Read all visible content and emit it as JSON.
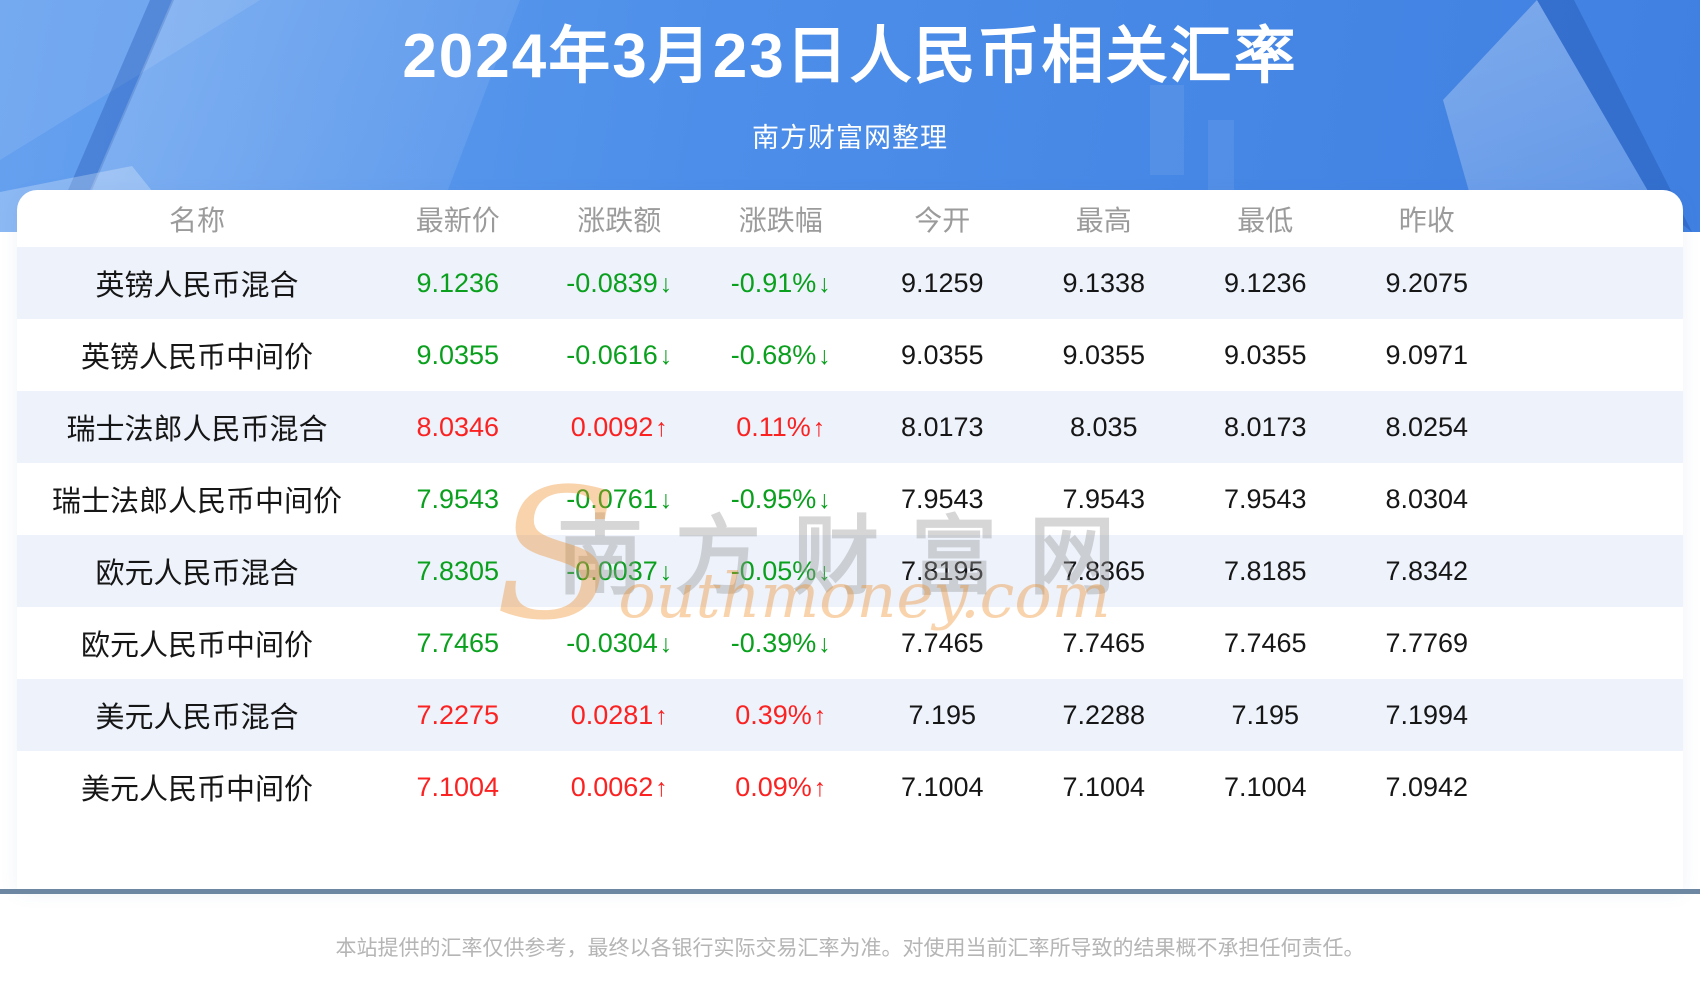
{
  "header": {
    "title": "2024年3月23日人民币相关汇率",
    "subtitle": "南方财富网整理"
  },
  "table": {
    "columns": [
      "名称",
      "最新价",
      "涨跌额",
      "涨跌幅",
      "今开",
      "最高",
      "最低",
      "昨收"
    ],
    "row_fields": [
      "name",
      "latest",
      "change",
      "change_pct",
      "open",
      "high",
      "low",
      "prev_close"
    ],
    "rows": [
      {
        "name": "英镑人民币混合",
        "latest": "9.1236",
        "change": "-0.0839",
        "change_pct": "-0.91%",
        "open": "9.1259",
        "high": "9.1338",
        "low": "9.1236",
        "prev_close": "9.2075",
        "direction": "down"
      },
      {
        "name": "英镑人民币中间价",
        "latest": "9.0355",
        "change": "-0.0616",
        "change_pct": "-0.68%",
        "open": "9.0355",
        "high": "9.0355",
        "low": "9.0355",
        "prev_close": "9.0971",
        "direction": "down"
      },
      {
        "name": "瑞士法郎人民币混合",
        "latest": "8.0346",
        "change": "0.0092",
        "change_pct": "0.11%",
        "open": "8.0173",
        "high": "8.035",
        "low": "8.0173",
        "prev_close": "8.0254",
        "direction": "up"
      },
      {
        "name": "瑞士法郎人民币中间价",
        "latest": "7.9543",
        "change": "-0.0761",
        "change_pct": "-0.95%",
        "open": "7.9543",
        "high": "7.9543",
        "low": "7.9543",
        "prev_close": "8.0304",
        "direction": "down"
      },
      {
        "name": "欧元人民币混合",
        "latest": "7.8305",
        "change": "-0.0037",
        "change_pct": "-0.05%",
        "open": "7.8195",
        "high": "7.8365",
        "low": "7.8185",
        "prev_close": "7.8342",
        "direction": "down"
      },
      {
        "name": "欧元人民币中间价",
        "latest": "7.7465",
        "change": "-0.0304",
        "change_pct": "-0.39%",
        "open": "7.7465",
        "high": "7.7465",
        "low": "7.7465",
        "prev_close": "7.7769",
        "direction": "down"
      },
      {
        "name": "美元人民币混合",
        "latest": "7.2275",
        "change": "0.0281",
        "change_pct": "0.39%",
        "open": "7.195",
        "high": "7.2288",
        "low": "7.195",
        "prev_close": "7.1994",
        "direction": "up"
      },
      {
        "name": "美元人民币中间价",
        "latest": "7.1004",
        "change": "0.0062",
        "change_pct": "0.09%",
        "open": "7.1004",
        "high": "7.1004",
        "low": "7.1004",
        "prev_close": "7.0942",
        "direction": "up"
      }
    ]
  },
  "icons": {
    "up_arrow": "↑",
    "down_arrow": "↓"
  },
  "watermark": {
    "cn": "南方财富网",
    "en_initial": "S",
    "en_rest": "outhmoney.com"
  },
  "footer": {
    "disclaimer": "本站提供的汇率仅供参考，最终以各银行实际交易汇率为准。对使用当前汇率所导致的结果概不承担任何责任。"
  },
  "colors": {
    "up": "#fb2222",
    "down": "#0aa01e",
    "banner_blue": "#4C8EE9",
    "stripe_blue": "#EDF2FB",
    "divider_slate": "#6d86a2"
  }
}
